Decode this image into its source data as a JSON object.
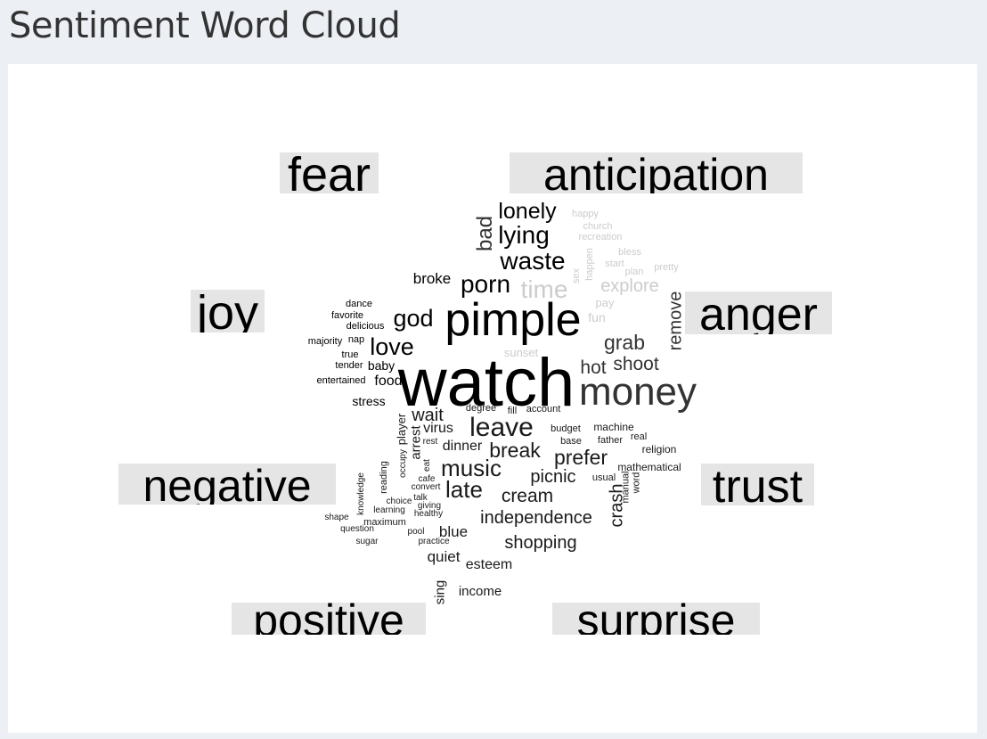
{
  "header": {
    "title": "Sentiment Word Cloud"
  },
  "chart_data": {
    "type": "wordcloud",
    "title": "",
    "categories": [
      "fear",
      "anticipation",
      "joy",
      "anger",
      "negative",
      "trust",
      "positive",
      "surprise"
    ],
    "words": [
      {
        "text": "watch",
        "weight": 10,
        "color": "#000000"
      },
      {
        "text": "pimple",
        "weight": 8,
        "color": "#000000"
      },
      {
        "text": "money",
        "weight": 7,
        "color": "#333333"
      },
      {
        "text": "leave",
        "weight": 5,
        "color": "#1a1a1a"
      },
      {
        "text": "lonely",
        "weight": 4,
        "color": "#000000"
      },
      {
        "text": "lying",
        "weight": 4,
        "color": "#000000"
      },
      {
        "text": "waste",
        "weight": 4,
        "color": "#000000"
      },
      {
        "text": "porn",
        "weight": 4,
        "color": "#000000"
      },
      {
        "text": "god",
        "weight": 4,
        "color": "#000000"
      },
      {
        "text": "love",
        "weight": 4,
        "color": "#000000"
      },
      {
        "text": "bad",
        "weight": 4,
        "color": "#333333"
      },
      {
        "text": "time",
        "weight": 4,
        "color": "#cccccc"
      },
      {
        "text": "explore",
        "weight": 3,
        "color": "#cccccc"
      },
      {
        "text": "grab",
        "weight": 3,
        "color": "#333333"
      },
      {
        "text": "hot",
        "weight": 3,
        "color": "#333333"
      },
      {
        "text": "shoot",
        "weight": 3,
        "color": "#333333"
      },
      {
        "text": "remove",
        "weight": 3,
        "color": "#333333"
      },
      {
        "text": "music",
        "weight": 4,
        "color": "#1a1a1a"
      },
      {
        "text": "late",
        "weight": 4,
        "color": "#1a1a1a"
      },
      {
        "text": "break",
        "weight": 3,
        "color": "#1a1a1a"
      },
      {
        "text": "prefer",
        "weight": 3,
        "color": "#1a1a1a"
      },
      {
        "text": "picnic",
        "weight": 3,
        "color": "#1a1a1a"
      },
      {
        "text": "cream",
        "weight": 3,
        "color": "#1a1a1a"
      },
      {
        "text": "independence",
        "weight": 3,
        "color": "#1a1a1a"
      },
      {
        "text": "shopping",
        "weight": 3,
        "color": "#1a1a1a"
      },
      {
        "text": "wait",
        "weight": 3,
        "color": "#1a1a1a"
      },
      {
        "text": "crash",
        "weight": 3,
        "color": "#1a1a1a"
      },
      {
        "text": "broke",
        "weight": 2,
        "color": "#000000"
      },
      {
        "text": "food",
        "weight": 2,
        "color": "#000000"
      },
      {
        "text": "baby",
        "weight": 2,
        "color": "#000000"
      },
      {
        "text": "stress",
        "weight": 2,
        "color": "#000000"
      },
      {
        "text": "virus",
        "weight": 2,
        "color": "#1a1a1a"
      },
      {
        "text": "dinner",
        "weight": 2,
        "color": "#1a1a1a"
      },
      {
        "text": "blue",
        "weight": 2,
        "color": "#1a1a1a"
      },
      {
        "text": "quiet",
        "weight": 2,
        "color": "#1a1a1a"
      },
      {
        "text": "esteem",
        "weight": 2,
        "color": "#1a1a1a"
      },
      {
        "text": "income",
        "weight": 2,
        "color": "#1a1a1a"
      },
      {
        "text": "sing",
        "weight": 2,
        "color": "#1a1a1a"
      },
      {
        "text": "player",
        "weight": 2,
        "color": "#1a1a1a"
      },
      {
        "text": "arrest",
        "weight": 2,
        "color": "#1a1a1a"
      },
      {
        "text": "sunset",
        "weight": 2,
        "color": "#cccccc"
      },
      {
        "text": "fun",
        "weight": 2,
        "color": "#cccccc"
      },
      {
        "text": "pay",
        "weight": 1,
        "color": "#cccccc"
      },
      {
        "text": "happy",
        "weight": 1,
        "color": "#cccccc"
      },
      {
        "text": "church",
        "weight": 1,
        "color": "#cccccc"
      },
      {
        "text": "recreation",
        "weight": 1,
        "color": "#cccccc"
      },
      {
        "text": "bless",
        "weight": 1,
        "color": "#cccccc"
      },
      {
        "text": "start",
        "weight": 1,
        "color": "#cccccc"
      },
      {
        "text": "pretty",
        "weight": 1,
        "color": "#cccccc"
      },
      {
        "text": "plan",
        "weight": 1,
        "color": "#cccccc"
      },
      {
        "text": "happen",
        "weight": 1,
        "color": "#cccccc"
      },
      {
        "text": "sex",
        "weight": 1,
        "color": "#cccccc"
      },
      {
        "text": "dance",
        "weight": 1,
        "color": "#000000"
      },
      {
        "text": "favorite",
        "weight": 1,
        "color": "#000000"
      },
      {
        "text": "delicious",
        "weight": 1,
        "color": "#000000"
      },
      {
        "text": "majority",
        "weight": 1,
        "color": "#000000"
      },
      {
        "text": "nap",
        "weight": 1,
        "color": "#000000"
      },
      {
        "text": "true",
        "weight": 1,
        "color": "#000000"
      },
      {
        "text": "tender",
        "weight": 1,
        "color": "#000000"
      },
      {
        "text": "entertained",
        "weight": 1,
        "color": "#000000"
      },
      {
        "text": "degree",
        "weight": 1,
        "color": "#1a1a1a"
      },
      {
        "text": "fill",
        "weight": 1,
        "color": "#1a1a1a"
      },
      {
        "text": "account",
        "weight": 1,
        "color": "#1a1a1a"
      },
      {
        "text": "budget",
        "weight": 1,
        "color": "#1a1a1a"
      },
      {
        "text": "machine",
        "weight": 1,
        "color": "#1a1a1a"
      },
      {
        "text": "base",
        "weight": 1,
        "color": "#1a1a1a"
      },
      {
        "text": "father",
        "weight": 1,
        "color": "#1a1a1a"
      },
      {
        "text": "real",
        "weight": 1,
        "color": "#1a1a1a"
      },
      {
        "text": "religion",
        "weight": 1,
        "color": "#1a1a1a"
      },
      {
        "text": "mathematical",
        "weight": 1,
        "color": "#1a1a1a"
      },
      {
        "text": "usual",
        "weight": 1,
        "color": "#1a1a1a"
      },
      {
        "text": "manual",
        "weight": 1,
        "color": "#1a1a1a"
      },
      {
        "text": "word",
        "weight": 1,
        "color": "#1a1a1a"
      },
      {
        "text": "rest",
        "weight": 1,
        "color": "#1a1a1a"
      },
      {
        "text": "occupy",
        "weight": 1,
        "color": "#1a1a1a"
      },
      {
        "text": "eat",
        "weight": 1,
        "color": "#1a1a1a"
      },
      {
        "text": "cafe",
        "weight": 1,
        "color": "#1a1a1a"
      },
      {
        "text": "convert",
        "weight": 1,
        "color": "#1a1a1a"
      },
      {
        "text": "talk",
        "weight": 1,
        "color": "#1a1a1a"
      },
      {
        "text": "giving",
        "weight": 1,
        "color": "#1a1a1a"
      },
      {
        "text": "healthy",
        "weight": 1,
        "color": "#1a1a1a"
      },
      {
        "text": "reading",
        "weight": 1,
        "color": "#1a1a1a"
      },
      {
        "text": "choice",
        "weight": 1,
        "color": "#1a1a1a"
      },
      {
        "text": "learning",
        "weight": 1,
        "color": "#1a1a1a"
      },
      {
        "text": "knowledge",
        "weight": 1,
        "color": "#1a1a1a"
      },
      {
        "text": "maximum",
        "weight": 1,
        "color": "#1a1a1a"
      },
      {
        "text": "shape",
        "weight": 1,
        "color": "#1a1a1a"
      },
      {
        "text": "question",
        "weight": 1,
        "color": "#1a1a1a"
      },
      {
        "text": "pool",
        "weight": 1,
        "color": "#1a1a1a"
      },
      {
        "text": "practice",
        "weight": 1,
        "color": "#1a1a1a"
      },
      {
        "text": "sugar",
        "weight": 1,
        "color": "#1a1a1a"
      }
    ]
  }
}
